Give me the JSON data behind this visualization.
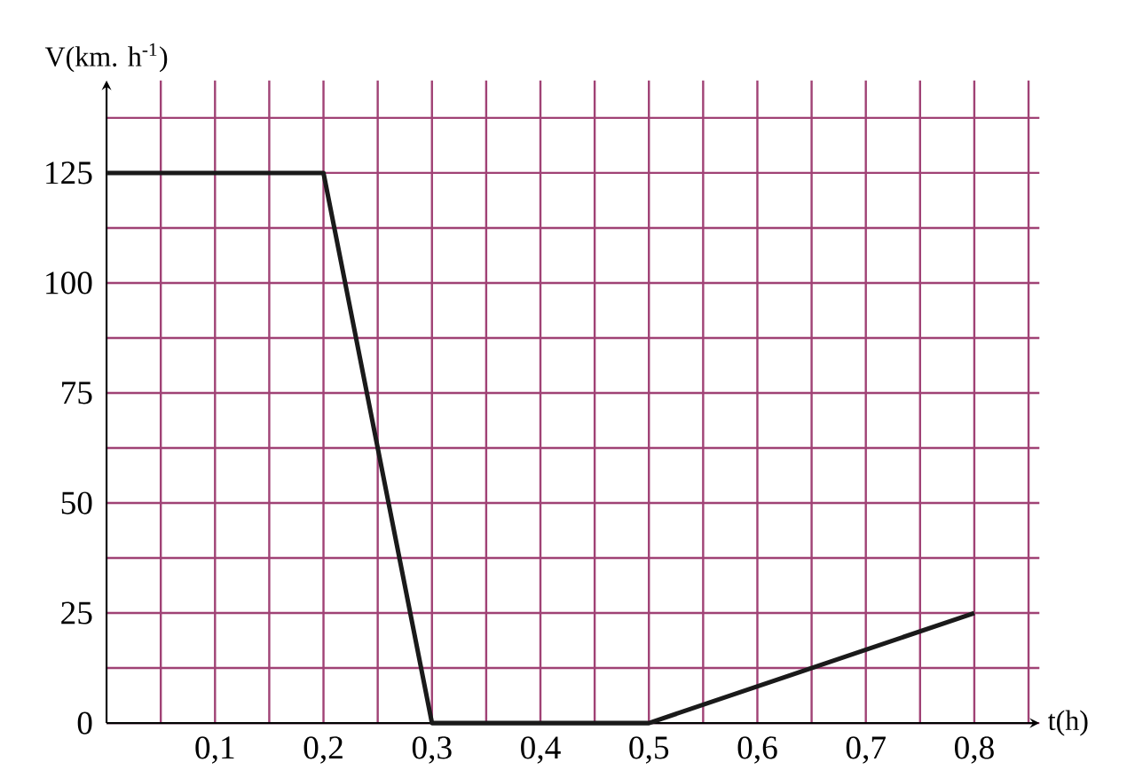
{
  "chart_data": {
    "type": "line",
    "xlabel": "t(h)",
    "ylabel": "V(km. h$^{-1}$)",
    "x": [
      0,
      0.2,
      0.3,
      0.5,
      0.8
    ],
    "series": [
      {
        "color": "#1a1a1a",
        "values": [
          125,
          125,
          0,
          0,
          25
        ]
      }
    ],
    "xlim": [
      0,
      0.86
    ],
    "ylim": [
      0,
      146
    ],
    "xticks": [
      {
        "value": 0.05,
        "label": null
      },
      {
        "value": 0.1,
        "label": "0,1"
      },
      {
        "value": 0.15,
        "label": null
      },
      {
        "value": 0.2,
        "label": "0,2"
      },
      {
        "value": 0.25,
        "label": null
      },
      {
        "value": 0.3,
        "label": "0,3"
      },
      {
        "value": 0.35,
        "label": null
      },
      {
        "value": 0.4,
        "label": "0,4"
      },
      {
        "value": 0.45,
        "label": null
      },
      {
        "value": 0.5,
        "label": "0,5"
      },
      {
        "value": 0.55,
        "label": null
      },
      {
        "value": 0.6,
        "label": "0,6"
      },
      {
        "value": 0.65,
        "label": null
      },
      {
        "value": 0.7,
        "label": "0,7"
      },
      {
        "value": 0.75,
        "label": null
      },
      {
        "value": 0.8,
        "label": "0,8"
      },
      {
        "value": 0.85,
        "label": null
      }
    ],
    "yticks": [
      0,
      {
        "value": 12.5,
        "label": null
      },
      25,
      {
        "value": 37.5,
        "label": null
      },
      50,
      {
        "value": 62.5,
        "label": null
      },
      75,
      {
        "value": 87.5,
        "label": null
      },
      100,
      {
        "value": 112.5,
        "label": null
      },
      125,
      {
        "value": 137.5,
        "label": null
      }
    ],
    "grid": true,
    "marker": "none",
    "line_style": "solid"
  }
}
